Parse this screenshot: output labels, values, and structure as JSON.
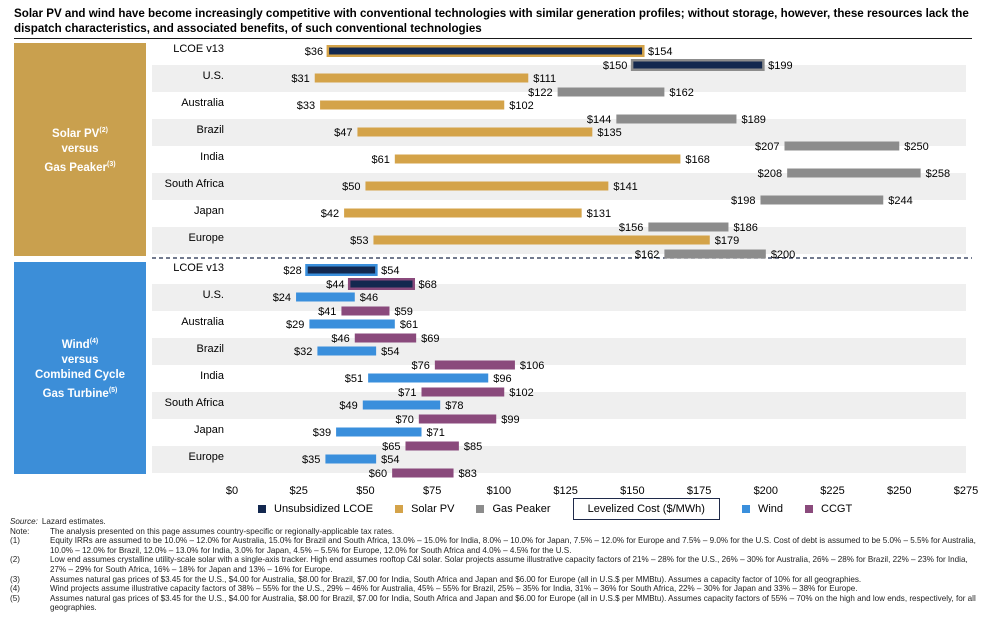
{
  "title": "Solar PV and wind have become increasingly competitive with conventional technologies with similar generation profiles; without storage, however, these resources lack the dispatch characteristics, and associated benefits, of such conventional technologies",
  "sections": {
    "solar": {
      "line1": "Solar PV",
      "sup1": "(2)",
      "line2": "versus",
      "line3": "Gas Peaker",
      "sup3": "(3)"
    },
    "wind": {
      "line1": "Wind",
      "sup1": "(4)",
      "line2": "versus",
      "line3": "Combined Cycle",
      "line4": "Gas Turbine",
      "sup4": "(5)"
    }
  },
  "colors": {
    "unsubsidized": "#13284f",
    "solar": "#d4a349",
    "gas_peaker": "#8c8c8c",
    "wind": "#3a8fdc",
    "ccgt": "#8a4a7c",
    "band": "#efefef"
  },
  "chart_data": {
    "type": "bar",
    "orientation": "horizontal floating range",
    "x_axis": {
      "min": 0,
      "max": 275,
      "ticks": [
        "$0",
        "$25",
        "$50",
        "$75",
        "$100",
        "$125",
        "$150",
        "$175",
        "$200",
        "$225",
        "$250",
        "$275"
      ],
      "grid": false
    },
    "categories_solar": [
      "LCOE v13",
      "U.S.",
      "Australia",
      "Brazil",
      "India",
      "South Africa",
      "Japan",
      "Europe"
    ],
    "categories_wind": [
      "LCOE v13",
      "U.S.",
      "Australia",
      "Brazil",
      "India",
      "South Africa",
      "Japan",
      "Europe"
    ],
    "series": [
      {
        "name": "Unsubsidized LCOE",
        "group": "solar",
        "category": "LCOE v13",
        "low": 36,
        "high": 154,
        "low_label": "$36",
        "high_label": "$154",
        "tech": "solar"
      },
      {
        "name": "Unsubsidized LCOE",
        "group": "solar",
        "category": "LCOE v13",
        "low": 150,
        "high": 199,
        "low_label": "$150",
        "high_label": "$199",
        "tech": "gas_peaker"
      },
      {
        "name": "Solar PV",
        "group": "solar",
        "category": "U.S.",
        "low": 31,
        "high": 111,
        "low_label": "$31",
        "high_label": "$111"
      },
      {
        "name": "Gas Peaker",
        "group": "solar",
        "category": "U.S.",
        "low": 122,
        "high": 162,
        "low_label": "$122",
        "high_label": "$162"
      },
      {
        "name": "Solar PV",
        "group": "solar",
        "category": "Australia",
        "low": 33,
        "high": 102,
        "low_label": "$33",
        "high_label": "$102"
      },
      {
        "name": "Gas Peaker",
        "group": "solar",
        "category": "Australia",
        "low": 144,
        "high": 189,
        "low_label": "$144",
        "high_label": "$189"
      },
      {
        "name": "Solar PV",
        "group": "solar",
        "category": "Brazil",
        "low": 47,
        "high": 135,
        "low_label": "$47",
        "high_label": "$135"
      },
      {
        "name": "Gas Peaker",
        "group": "solar",
        "category": "Brazil",
        "low": 207,
        "high": 250,
        "low_label": "$207",
        "high_label": "$250"
      },
      {
        "name": "Solar PV",
        "group": "solar",
        "category": "India",
        "low": 61,
        "high": 168,
        "low_label": "$61",
        "high_label": "$168"
      },
      {
        "name": "Gas Peaker",
        "group": "solar",
        "category": "India",
        "low": 208,
        "high": 258,
        "low_label": "$208",
        "high_label": "$258"
      },
      {
        "name": "Solar PV",
        "group": "solar",
        "category": "South Africa",
        "low": 50,
        "high": 141,
        "low_label": "$50",
        "high_label": "$141"
      },
      {
        "name": "Gas Peaker",
        "group": "solar",
        "category": "South Africa",
        "low": 198,
        "high": 244,
        "low_label": "$198",
        "high_label": "$244"
      },
      {
        "name": "Solar PV",
        "group": "solar",
        "category": "Japan",
        "low": 42,
        "high": 131,
        "low_label": "$42",
        "high_label": "$131"
      },
      {
        "name": "Gas Peaker",
        "group": "solar",
        "category": "Japan",
        "low": 156,
        "high": 186,
        "low_label": "$156",
        "high_label": "$186"
      },
      {
        "name": "Solar PV",
        "group": "solar",
        "category": "Europe",
        "low": 53,
        "high": 179,
        "low_label": "$53",
        "high_label": "$179"
      },
      {
        "name": "Gas Peaker",
        "group": "solar",
        "category": "Europe",
        "low": 162,
        "high": 200,
        "low_label": "$162",
        "high_label": "$200"
      },
      {
        "name": "Unsubsidized LCOE",
        "group": "wind",
        "category": "LCOE v13",
        "low": 28,
        "high": 54,
        "low_label": "$28",
        "high_label": "$54",
        "tech": "wind"
      },
      {
        "name": "Unsubsidized LCOE",
        "group": "wind",
        "category": "LCOE v13",
        "low": 44,
        "high": 68,
        "low_label": "$44",
        "high_label": "$68",
        "tech": "ccgt"
      },
      {
        "name": "Wind",
        "group": "wind",
        "category": "U.S.",
        "low": 24,
        "high": 46,
        "low_label": "$24",
        "high_label": "$46"
      },
      {
        "name": "CCGT",
        "group": "wind",
        "category": "U.S.",
        "low": 41,
        "high": 59,
        "low_label": "$41",
        "high_label": "$59"
      },
      {
        "name": "Wind",
        "group": "wind",
        "category": "Australia",
        "low": 29,
        "high": 61,
        "low_label": "$29",
        "high_label": "$61"
      },
      {
        "name": "CCGT",
        "group": "wind",
        "category": "Australia",
        "low": 46,
        "high": 69,
        "low_label": "$46",
        "high_label": "$69"
      },
      {
        "name": "Wind",
        "group": "wind",
        "category": "Brazil",
        "low": 32,
        "high": 54,
        "low_label": "$32",
        "high_label": "$54"
      },
      {
        "name": "CCGT",
        "group": "wind",
        "category": "Brazil",
        "low": 76,
        "high": 106,
        "low_label": "$76",
        "high_label": "$106"
      },
      {
        "name": "Wind",
        "group": "wind",
        "category": "India",
        "low": 51,
        "high": 96,
        "low_label": "$51",
        "high_label": "$96"
      },
      {
        "name": "CCGT",
        "group": "wind",
        "category": "India",
        "low": 71,
        "high": 102,
        "low_label": "$71",
        "high_label": "$102"
      },
      {
        "name": "Wind",
        "group": "wind",
        "category": "South Africa",
        "low": 49,
        "high": 78,
        "low_label": "$49",
        "high_label": "$78"
      },
      {
        "name": "CCGT",
        "group": "wind",
        "category": "South Africa",
        "low": 70,
        "high": 99,
        "low_label": "$70",
        "high_label": "$99"
      },
      {
        "name": "Wind",
        "group": "wind",
        "category": "Japan",
        "low": 39,
        "high": 71,
        "low_label": "$39",
        "high_label": "$71"
      },
      {
        "name": "CCGT",
        "group": "wind",
        "category": "Japan",
        "low": 65,
        "high": 85,
        "low_label": "$65",
        "high_label": "$85"
      },
      {
        "name": "Wind",
        "group": "wind",
        "category": "Europe",
        "low": 35,
        "high": 54,
        "low_label": "$35",
        "high_label": "$54"
      },
      {
        "name": "CCGT",
        "group": "wind",
        "category": "Europe",
        "low": 60,
        "high": 83,
        "low_label": "$60",
        "high_label": "$83"
      }
    ],
    "legend": {
      "items": [
        "Unsubsidized LCOE",
        "Solar PV",
        "Gas Peaker",
        "Wind",
        "CCGT"
      ],
      "box_label": "Levelized Cost ($/MWh)",
      "placement": "bottom"
    }
  },
  "footnotes": {
    "source_key": "Source:",
    "source_text": "Lazard estimates.",
    "items": [
      {
        "key": "Note:",
        "text": "The analysis presented on this page assumes country-specific or regionally-applicable tax rates."
      },
      {
        "key": "(1)",
        "text": "Equity IRRs are assumed to be 10.0% – 12.0% for Australia, 15.0% for Brazil and South Africa, 13.0% – 15.0% for India, 8.0% – 10.0% for Japan, 7.5% – 12.0% for Europe  and 7.5% – 9.0% for the U.S. Cost of debt is assumed to be 5.0% – 5.5% for Australia, 10.0% – 12.0% for Brazil, 12.0% – 13.0% for India, 3.0% for Japan, 4.5% – 5.5% for Europe, 12.0% for South Africa and 4.0% – 4.5% for the U.S."
      },
      {
        "key": "(2)",
        "text": "Low end assumes crystalline utility-scale solar with a single-axis tracker. High end assumes rooftop C&I solar. Solar projects assume illustrative capacity factors of 21% – 28% for the U.S., 26% – 30% for Australia, 26% – 28% for Brazil, 22% – 23% for India, 27% – 29% for South Africa, 16% – 18% for Japan and 13% – 16% for Europe."
      },
      {
        "key": "(3)",
        "text": "Assumes natural gas prices of $3.45 for the U.S., $4.00 for Australia, $8.00 for Brazil, $7.00 for India, South Africa and Japan and $6.00 for Europe (all in U.S.$ per MMBtu). Assumes a capacity factor of 10% for all geographies."
      },
      {
        "key": "(4)",
        "text": "Wind projects assume illustrative capacity factors of 38% – 55% for the U.S., 29% – 46% for Australia, 45% – 55% for Brazil, 25% – 35% for India, 31% – 36% for South Africa, 22% – 30% for Japan and 33% – 38% for Europe."
      },
      {
        "key": "(5)",
        "text": "Assumes natural gas prices of $3.45 for the U.S., $4.00 for Australia, $8.00 for Brazil, $7.00 for India, South Africa and Japan and $6.00 for Europe (all in U.S.$ per MMBtu). Assumes capacity factors of 55% – 70% on the high and low ends, respectively, for all geographies."
      }
    ]
  }
}
